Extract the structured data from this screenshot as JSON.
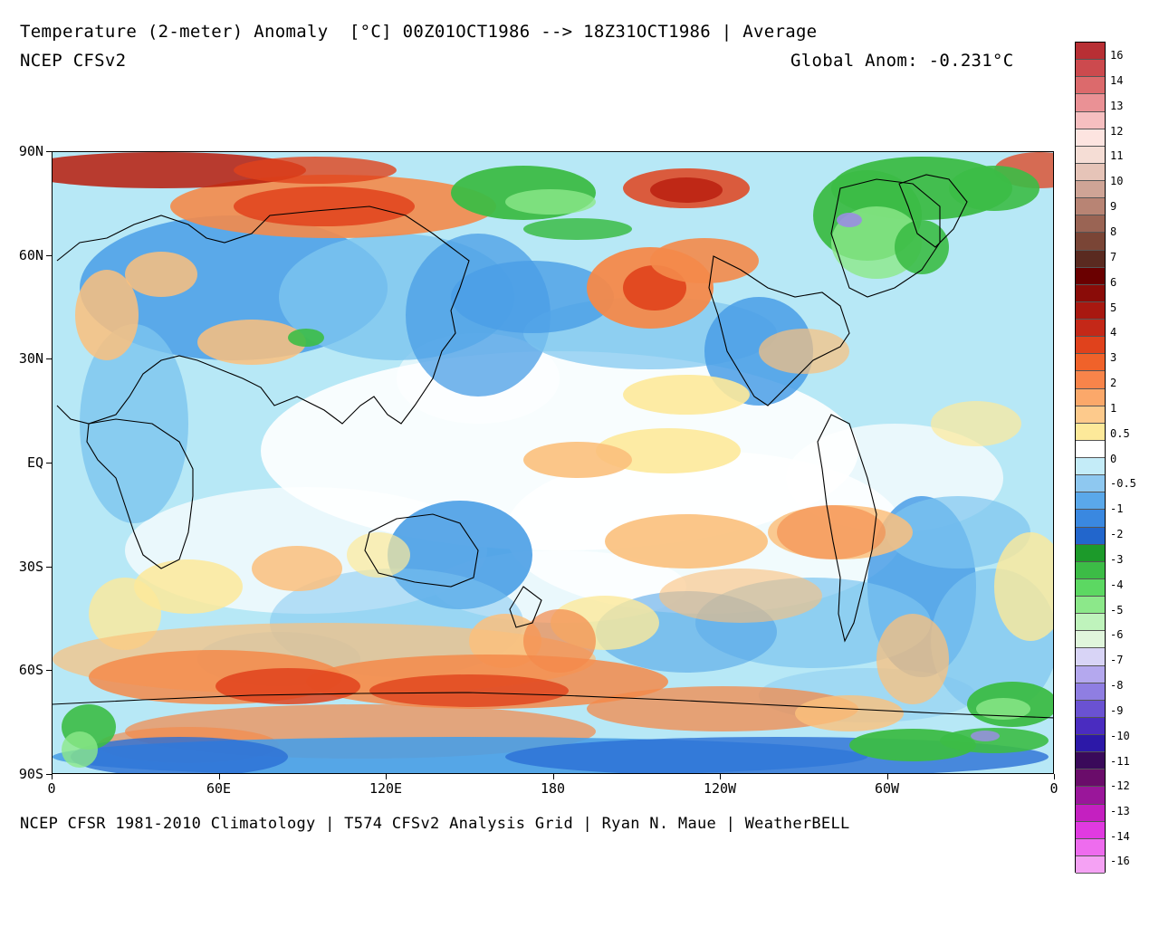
{
  "header": {
    "title": "Temperature (2-meter) Anomaly  [°C] 00Z01OCT1986 --> 18Z31OCT1986 | Average",
    "model": "NCEP CFSv2",
    "global_anom": "Global Anom: -0.231°C"
  },
  "footer": "NCEP CFSR 1981-2010 Climatology | T574 CFSv2 Analysis Grid | Ryan N. Maue | WeatherBELL",
  "axes": {
    "lat_labels": [
      "90N",
      "60N",
      "30N",
      "EQ",
      "30S",
      "60S",
      "90S"
    ],
    "lon_labels": [
      "0",
      "60E",
      "120E",
      "180",
      "120W",
      "60W",
      "0"
    ]
  },
  "colorbar": {
    "labels": [
      "16",
      "14",
      "13",
      "12",
      "11",
      "10",
      "9",
      "8",
      "7",
      "6",
      "5",
      "4",
      "3",
      "2",
      "1",
      "0.5",
      "0",
      "-0.5",
      "-1",
      "-2",
      "-3",
      "-4",
      "-5",
      "-6",
      "-7",
      "-8",
      "-9",
      "-10",
      "-11",
      "-12",
      "-13",
      "-14",
      "-16"
    ],
    "colors": [
      "#b82f34",
      "#cc4a4e",
      "#dc6a6c",
      "#ea9195",
      "#f6bfc0",
      "#fde4e0",
      "#f5ddd5",
      "#e6c4b8",
      "#cfa496",
      "#b88474",
      "#9a6454",
      "#7a4536",
      "#5a2a20",
      "#6a0000",
      "#8a0c08",
      "#a81810",
      "#c42818",
      "#e0421c",
      "#f0622a",
      "#f8844a",
      "#fba86a",
      "#fdca8c",
      "#fde99a",
      "#ffffff",
      "#c4ecf8",
      "#8ec8f0",
      "#5aa8ea",
      "#3a88e0",
      "#2266cc",
      "#1c9a2a",
      "#3cbc46",
      "#5cd862",
      "#8ce88a",
      "#bff3bc",
      "#e0f6dc",
      "#d8d4f6",
      "#b4a8ee",
      "#8f7ee2",
      "#6a52d2",
      "#4a2cc0",
      "#2c18a8",
      "#3a0a5a",
      "#6a0c6a",
      "#9a169a",
      "#c420c0",
      "#e03ae0",
      "#ee6cee",
      "#f5a2f4"
    ],
    "boxes_note": ""
  },
  "map": {
    "palette": {
      "ocean_white": "#ffffff",
      "light_blue": "#b7e8f6",
      "mid_blue": "#7cc4ef",
      "blue": "#4a9ee6",
      "deep_blue": "#2a6fd6",
      "yellow": "#fde99a",
      "orange_light": "#fbc07c",
      "orange": "#f4894a",
      "red": "#e0421c",
      "dark_red": "#b81c0c",
      "green": "#3cbc46",
      "light_green": "#8ce88a",
      "purple": "#9a8ee2",
      "coast": "#000000"
    }
  }
}
